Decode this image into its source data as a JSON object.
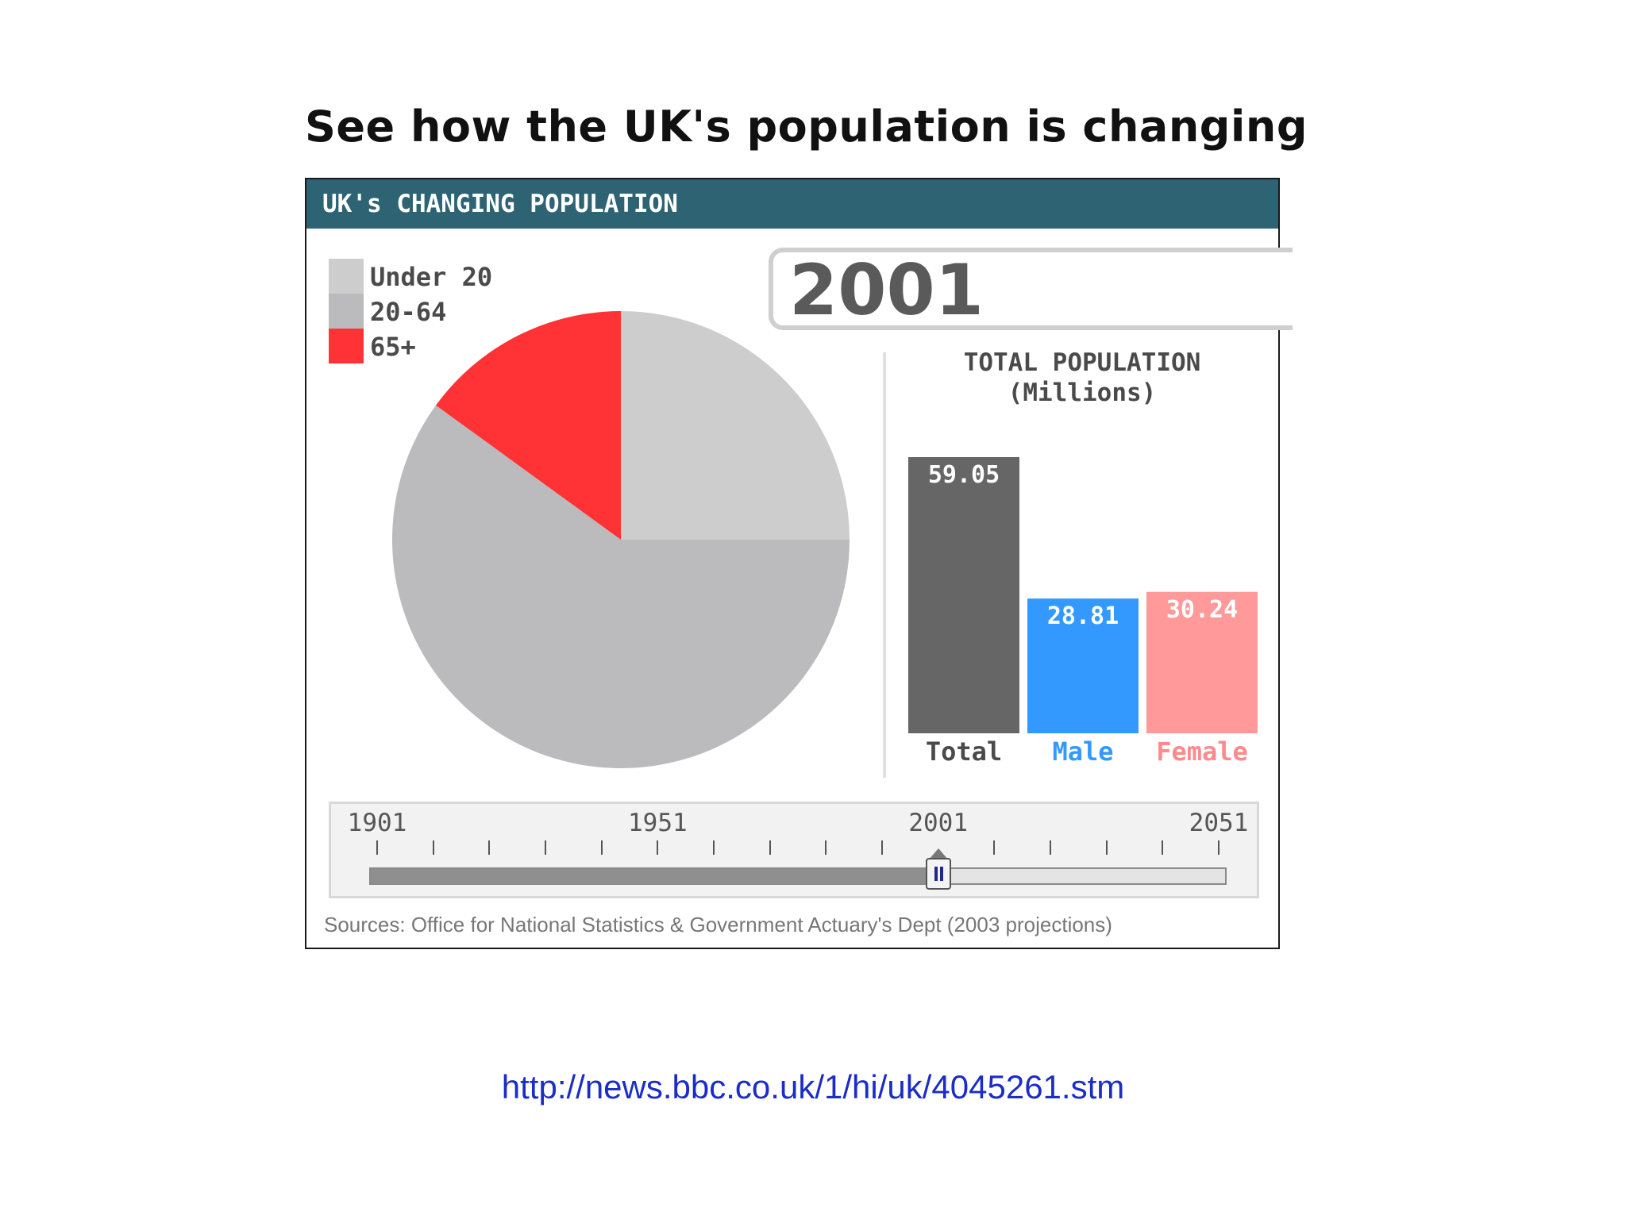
{
  "slide": {
    "title": "See how the UK's population is changing",
    "link": "http://news.bbc.co.uk/1/hi/uk/4045261.stm"
  },
  "panel": {
    "header": "UK's CHANGING POPULATION",
    "year": "2001",
    "sources": "Sources: Office for National Statistics & Government Actuary's Dept (2003 projections)"
  },
  "chart_data": [
    {
      "type": "pie",
      "legend_position": "top-left",
      "slices": [
        {
          "label": "Under 20",
          "share": 0.25,
          "color": "#cdcdcd"
        },
        {
          "label": "20-64",
          "share": 0.6,
          "color": "#bbbabd"
        },
        {
          "label": "65+",
          "share": 0.15,
          "color": "#ff3336"
        }
      ]
    },
    {
      "type": "bar",
      "title": "TOTAL POPULATION",
      "subtitle": "(Millions)",
      "categories": [
        "Total",
        "Male",
        "Female"
      ],
      "values": [
        59.05,
        28.81,
        30.24
      ],
      "value_labels": [
        "59.05",
        "28.81",
        "30.24"
      ],
      "bar_colors": [
        "#666666",
        "#3399ff",
        "#ff999a"
      ],
      "category_colors": [
        "#4a4a4a",
        "#3399ff",
        "#ff8a8c"
      ],
      "value_label_colors": [
        "#ffffff",
        "#ffffff",
        "#ffffff"
      ]
    }
  ],
  "timeline": {
    "labels": [
      "1901",
      "1951",
      "2001",
      "2051"
    ],
    "start_year": 1901,
    "end_year": 2051,
    "tick_step": 10,
    "selected_year": 2001
  }
}
